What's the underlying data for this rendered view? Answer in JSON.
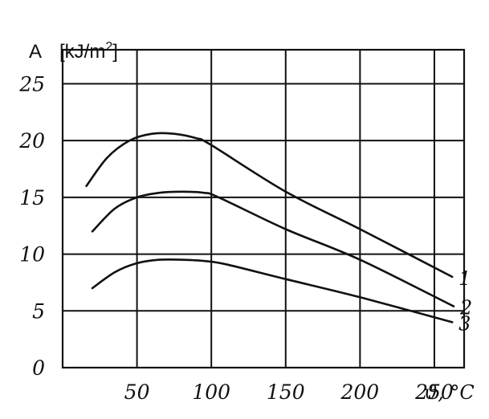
{
  "chart_data": {
    "type": "line",
    "ylabel": "A",
    "ylabel_unit": "[kJ/m²]",
    "xlabel": "ϑ, °C",
    "xlim": [
      0,
      270
    ],
    "ylim": [
      0,
      28
    ],
    "x_ticks": [
      50,
      100,
      150,
      200,
      250
    ],
    "y_ticks": [
      0,
      5,
      10,
      15,
      20,
      25
    ],
    "grid": true,
    "series": [
      {
        "name": "1",
        "x": [
          16,
          30,
          45,
          60,
          75,
          90,
          100,
          150,
          200,
          262
        ],
        "y": [
          16.0,
          18.5,
          20.0,
          20.6,
          20.6,
          20.2,
          19.6,
          15.5,
          12.2,
          8.0
        ]
      },
      {
        "name": "2",
        "x": [
          20,
          35,
          50,
          65,
          80,
          95,
          105,
          150,
          200,
          263
        ],
        "y": [
          12.0,
          14.0,
          15.0,
          15.4,
          15.5,
          15.4,
          15.0,
          12.2,
          9.5,
          5.4
        ]
      },
      {
        "name": "3",
        "x": [
          20,
          35,
          50,
          65,
          80,
          95,
          110,
          150,
          200,
          262
        ],
        "y": [
          7.0,
          8.4,
          9.2,
          9.5,
          9.5,
          9.4,
          9.1,
          7.8,
          6.2,
          4.0
        ]
      }
    ]
  }
}
